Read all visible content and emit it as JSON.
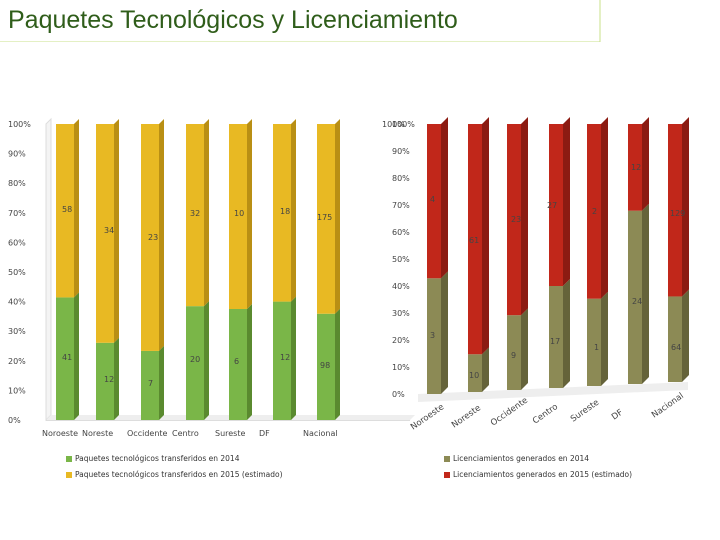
{
  "title": "Paquetes Tecnológicos y Licenciamiento",
  "colors": {
    "green": "#7ab648",
    "green_side": "#5a8a2f",
    "yellow": "#e8b923",
    "yellow_side": "#b98f14",
    "olive": "#8c8a55",
    "olive_side": "#65633a",
    "red": "#c1271a",
    "red_side": "#8c1b12",
    "title": "#2f5d1a",
    "frame": "#c8e08a"
  },
  "legend": {
    "s2014": "Paquetes tecnológicos transferidos en 2014",
    "s2015": "Paquetes tecnológicos transferidos en 2015 (estimado)",
    "l2014": "Licenciamientos generados en 2014",
    "l2015": "Licenciamientos generados en 2015 (estimado)"
  },
  "chart_data": [
    {
      "type": "bar",
      "stacked": "percent",
      "title": "Paquetes tecnológicos",
      "categories": [
        "Noroeste",
        "Noreste",
        "Occidente",
        "Centro",
        "Sureste",
        "DF",
        "Nacional"
      ],
      "series": [
        {
          "name": "Paquetes tecnológicos transferidos en 2014",
          "values": [
            41,
            12,
            7,
            20,
            6,
            12,
            98
          ]
        },
        {
          "name": "Paquetes tecnológicos transferidos en 2015 (estimado)",
          "values": [
            58,
            34,
            23,
            32,
            10,
            18,
            175
          ]
        }
      ],
      "yticks": [
        "0%",
        "10%",
        "20%",
        "30%",
        "40%",
        "50%",
        "60%",
        "70%",
        "80%",
        "90%",
        "100%"
      ],
      "ylim": [
        0,
        100
      ]
    },
    {
      "type": "bar",
      "stacked": "percent",
      "title": "Licenciamientos",
      "categories": [
        "Noroeste",
        "Noreste",
        "Occidente",
        "Centro",
        "Sureste",
        "DF",
        "Nacional"
      ],
      "series": [
        {
          "name": "Licenciamientos generados en 2014",
          "values": [
            3,
            10,
            9,
            17,
            1,
            24,
            64
          ]
        },
        {
          "name": "Licenciamientos generados en 2015 (estimado)",
          "values": [
            4,
            61,
            23,
            27,
            2,
            12,
            129
          ]
        }
      ],
      "yticks": [
        "0%",
        "10%",
        "20%",
        "30%",
        "40%",
        "50%",
        "60%",
        "70%",
        "80%",
        "90%",
        "100%"
      ],
      "ylim": [
        0,
        100
      ]
    }
  ]
}
